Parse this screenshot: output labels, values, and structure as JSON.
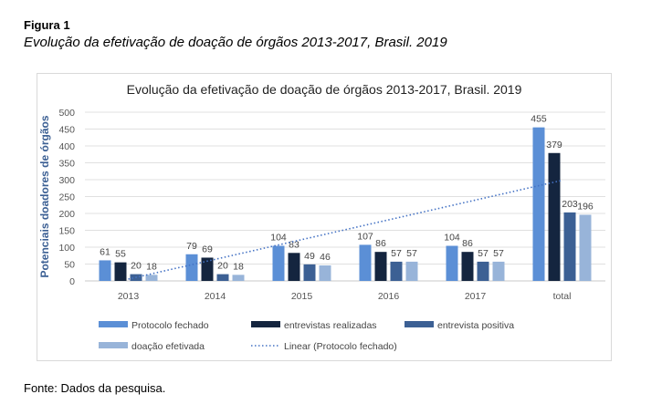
{
  "figure_label": "Figura 1",
  "caption": "Evolução da efetivação de doação de órgãos 2013-2017, Brasil. 2019",
  "source": "Fonte: Dados da pesquisa.",
  "chart_data": {
    "type": "bar",
    "title": "Evolução da efetivação de doação de órgãos 2013-2017, Brasil. 2019",
    "xlabel": "",
    "ylabel": "Potenciais doadores de órgãos",
    "ylim": [
      0,
      500
    ],
    "yticks": [
      0,
      50,
      100,
      150,
      200,
      250,
      300,
      350,
      400,
      450,
      500
    ],
    "grid": true,
    "legend_position": "bottom",
    "categories": [
      "2013",
      "2014",
      "2015",
      "2016",
      "2017",
      "total"
    ],
    "series": [
      {
        "name": "Protocolo fechado",
        "color": "#5b8fd6",
        "values": [
          61,
          79,
          104,
          107,
          104,
          455
        ]
      },
      {
        "name": "entrevistas realizadas",
        "color": "#14253f",
        "values": [
          55,
          69,
          83,
          86,
          86,
          379
        ]
      },
      {
        "name": "entrevista positiva",
        "color": "#3c6094",
        "values": [
          20,
          20,
          49,
          57,
          57,
          203
        ]
      },
      {
        "name": "doação efetivada",
        "color": "#98b4d9",
        "values": [
          18,
          18,
          46,
          57,
          57,
          196
        ]
      }
    ],
    "trendline": {
      "name": "Linear (Protocolo fechado)",
      "type": "linear",
      "of_series": "Protocolo fechado",
      "color": "#4472c4",
      "style": "dotted"
    }
  }
}
